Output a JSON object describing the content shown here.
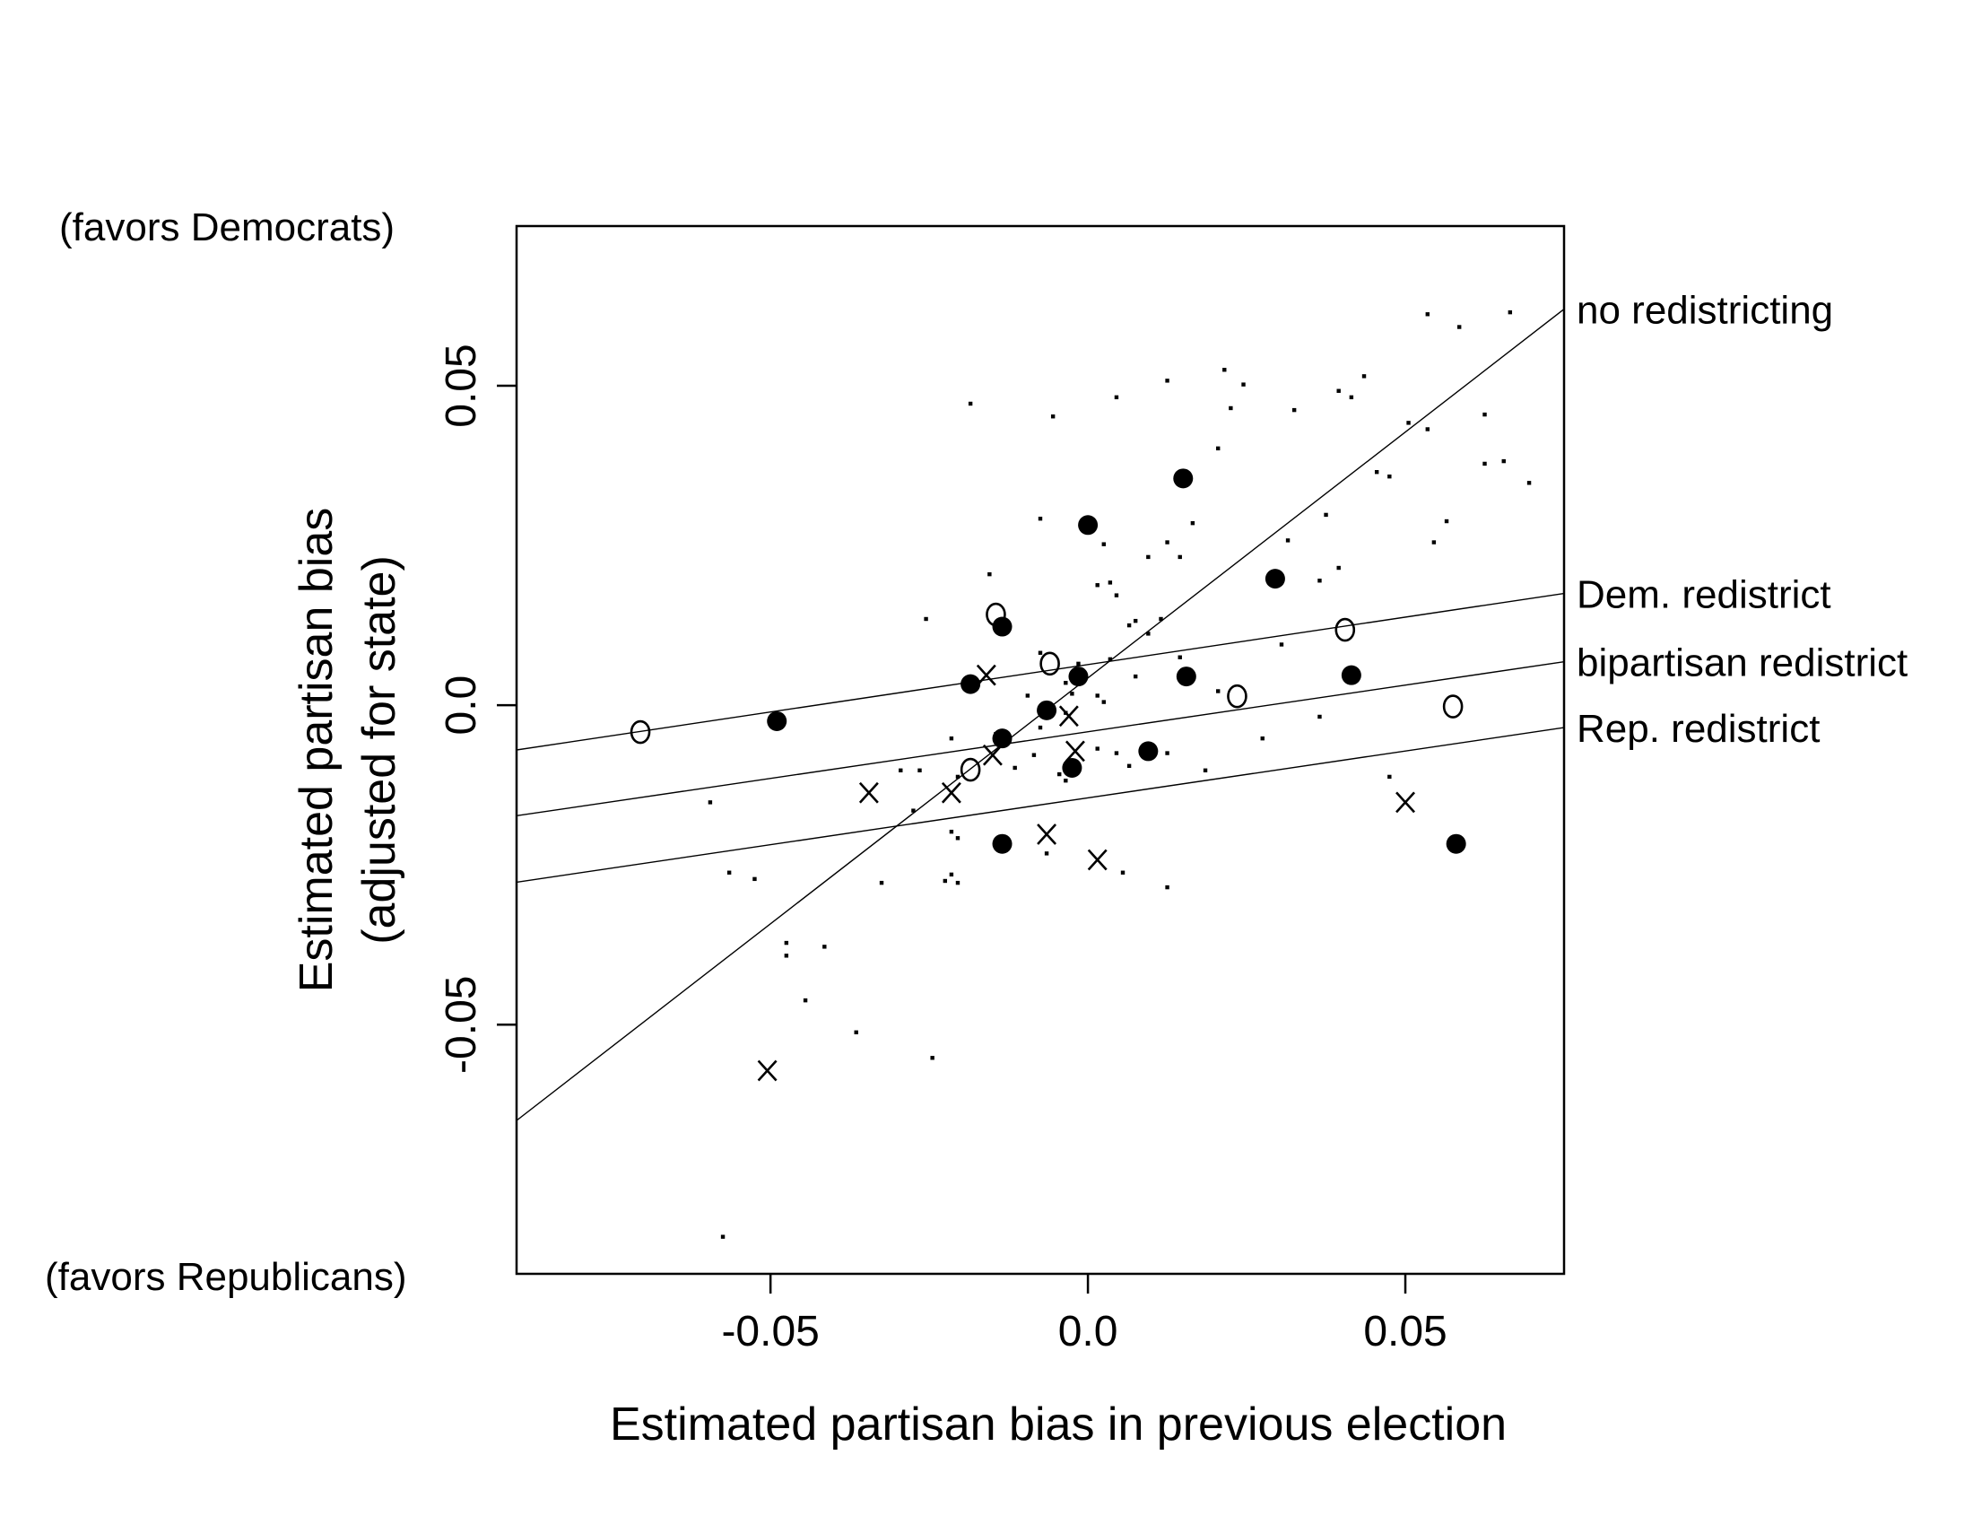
{
  "chart_data": {
    "type": "scatter",
    "xlabel": "Estimated partisan bias in previous election",
    "ylabel": [
      "Estimated partisan bias",
      "(adjusted for state)"
    ],
    "annotations": {
      "top": "(favors Democrats)",
      "bottom": "(favors Republicans)"
    },
    "xlim": [
      -0.09,
      0.075
    ],
    "ylim": [
      -0.089,
      0.075
    ],
    "xticks": [
      -0.05,
      0.0,
      0.05
    ],
    "yticks": [
      -0.05,
      0.0,
      0.05
    ],
    "xtick_labels": [
      "-0.05",
      "0.0",
      "0.05"
    ],
    "ytick_labels": [
      "-0.05",
      "0.0",
      "0.05"
    ],
    "grid": false,
    "legend": "none",
    "lines": [
      {
        "name": "no redistricting",
        "x": [
          -0.09,
          0.075
        ],
        "y": [
          -0.065,
          0.062
        ]
      },
      {
        "name": "Dem. redistrict",
        "x": [
          -0.09,
          0.075
        ],
        "y": [
          -0.007,
          0.0175
        ]
      },
      {
        "name": "bipartisan redistrict",
        "x": [
          -0.09,
          0.075
        ],
        "y": [
          -0.0173,
          0.0068
        ]
      },
      {
        "name": "Rep. redistrict",
        "x": [
          -0.09,
          0.075
        ],
        "y": [
          -0.0277,
          -0.0035
        ]
      }
    ],
    "series": [
      {
        "name": "filled",
        "marker": "filled-circle",
        "points": [
          [
            -0.049,
            -0.0025
          ],
          [
            -0.0185,
            0.0033
          ],
          [
            -0.0135,
            0.0123
          ],
          [
            -0.0135,
            -0.0052
          ],
          [
            -0.0135,
            -0.0217
          ],
          [
            -0.0065,
            -0.0008
          ],
          [
            -0.0015,
            0.0045
          ],
          [
            -0.0025,
            -0.0098
          ],
          [
            0.0,
            0.0282
          ],
          [
            0.0095,
            -0.0072
          ],
          [
            0.015,
            0.0355
          ],
          [
            0.0155,
            0.0045
          ],
          [
            0.0295,
            0.0198
          ],
          [
            0.0415,
            0.0047
          ],
          [
            0.058,
            -0.0217
          ]
        ]
      },
      {
        "name": "open",
        "marker": "o",
        "points": [
          [
            -0.0705,
            -0.0042
          ],
          [
            -0.0185,
            -0.0101
          ],
          [
            -0.0145,
            0.0142
          ],
          [
            -0.006,
            0.0065
          ],
          [
            0.0235,
            0.0014
          ],
          [
            0.0405,
            0.0118
          ],
          [
            0.0575,
            -0.0002
          ]
        ]
      },
      {
        "name": "cross",
        "marker": "x",
        "points": [
          [
            -0.0505,
            -0.0572
          ],
          [
            -0.0345,
            -0.0137
          ],
          [
            -0.0215,
            -0.0137
          ],
          [
            -0.016,
            0.0047
          ],
          [
            -0.015,
            -0.0078
          ],
          [
            -0.0065,
            -0.0202
          ],
          [
            -0.003,
            -0.0017
          ],
          [
            -0.002,
            -0.0072
          ],
          [
            0.0015,
            -0.0242
          ],
          [
            0.05,
            -0.0152
          ]
        ]
      },
      {
        "name": "small",
        "marker": "dot",
        "points": [
          [
            0.0535,
            0.0612
          ],
          [
            0.0665,
            0.0615
          ],
          [
            0.0585,
            0.0592
          ],
          [
            0.0215,
            0.0525
          ],
          [
            0.0125,
            0.0508
          ],
          [
            0.0245,
            0.0502
          ],
          [
            0.0435,
            0.0515
          ],
          [
            0.0395,
            0.0492
          ],
          [
            0.0415,
            0.0482
          ],
          [
            -0.0185,
            0.0472
          ],
          [
            0.0045,
            0.0482
          ],
          [
            0.0225,
            0.0465
          ],
          [
            0.0325,
            0.0462
          ],
          [
            0.0625,
            0.0455
          ],
          [
            -0.0055,
            0.0452
          ],
          [
            0.0505,
            0.0442
          ],
          [
            0.0535,
            0.0432
          ],
          [
            0.0205,
            0.0402
          ],
          [
            0.0625,
            0.0378
          ],
          [
            0.0655,
            0.0382
          ],
          [
            0.0455,
            0.0365
          ],
          [
            0.0475,
            0.0358
          ],
          [
            0.0695,
            0.0348
          ],
          [
            0.0375,
            0.0298
          ],
          [
            0.0565,
            0.0288
          ],
          [
            -0.0075,
            0.0292
          ],
          [
            0.0165,
            0.0285
          ],
          [
            0.0545,
            0.0255
          ],
          [
            0.0025,
            0.0252
          ],
          [
            0.0125,
            0.0255
          ],
          [
            0.0315,
            0.0258
          ],
          [
            0.0095,
            0.0232
          ],
          [
            0.0145,
            0.0232
          ],
          [
            0.0395,
            0.0215
          ],
          [
            -0.0155,
            0.0205
          ],
          [
            0.0035,
            0.0192
          ],
          [
            0.0015,
            0.0188
          ],
          [
            0.0365,
            0.0195
          ],
          [
            0.0045,
            0.0172
          ],
          [
            0.0075,
            0.0132
          ],
          [
            0.0115,
            0.0135
          ],
          [
            -0.0255,
            0.0135
          ],
          [
            0.0095,
            0.0112
          ],
          [
            0.0065,
            0.0125
          ],
          [
            0.0305,
            0.0095
          ],
          [
            0.0145,
            0.0075
          ],
          [
            -0.0015,
            0.0065
          ],
          [
            -0.0075,
            0.0082
          ],
          [
            0.0035,
            0.0072
          ],
          [
            0.0075,
            0.0045
          ],
          [
            -0.0035,
            0.0035
          ],
          [
            0.0015,
            0.0015
          ],
          [
            -0.0025,
            0.0018
          ],
          [
            0.0025,
            0.0005
          ],
          [
            0.0205,
            0.0022
          ],
          [
            -0.0095,
            0.0015
          ],
          [
            -0.0035,
            -0.0012
          ],
          [
            0.0365,
            -0.0018
          ],
          [
            -0.0075,
            -0.0035
          ],
          [
            -0.0145,
            -0.0045
          ],
          [
            0.0275,
            -0.0052
          ],
          [
            0.0015,
            -0.0068
          ],
          [
            0.0045,
            -0.0075
          ],
          [
            -0.0215,
            -0.0052
          ],
          [
            0.0125,
            -0.0075
          ],
          [
            -0.0085,
            -0.0078
          ],
          [
            -0.0115,
            -0.0098
          ],
          [
            0.0185,
            -0.0102
          ],
          [
            -0.0045,
            -0.0108
          ],
          [
            0.0065,
            -0.0095
          ],
          [
            -0.0295,
            -0.0102
          ],
          [
            -0.0265,
            -0.0102
          ],
          [
            -0.0035,
            -0.0118
          ],
          [
            0.0475,
            -0.0112
          ],
          [
            -0.0205,
            -0.0112
          ],
          [
            -0.0595,
            -0.0152
          ],
          [
            -0.0275,
            -0.0165
          ],
          [
            -0.0215,
            -0.0198
          ],
          [
            -0.0205,
            -0.0208
          ],
          [
            -0.0065,
            -0.0232
          ],
          [
            0.0055,
            -0.0262
          ],
          [
            -0.0565,
            -0.0262
          ],
          [
            -0.0525,
            -0.0272
          ],
          [
            -0.0215,
            -0.0265
          ],
          [
            -0.0205,
            -0.0278
          ],
          [
            -0.0225,
            -0.0275
          ],
          [
            -0.0325,
            -0.0278
          ],
          [
            0.0125,
            -0.0285
          ],
          [
            -0.0475,
            -0.0372
          ],
          [
            -0.0415,
            -0.0378
          ],
          [
            -0.0475,
            -0.0392
          ],
          [
            -0.0445,
            -0.0462
          ],
          [
            -0.0365,
            -0.0512
          ],
          [
            -0.0245,
            -0.0552
          ],
          [
            -0.0575,
            -0.0832
          ]
        ]
      }
    ]
  }
}
